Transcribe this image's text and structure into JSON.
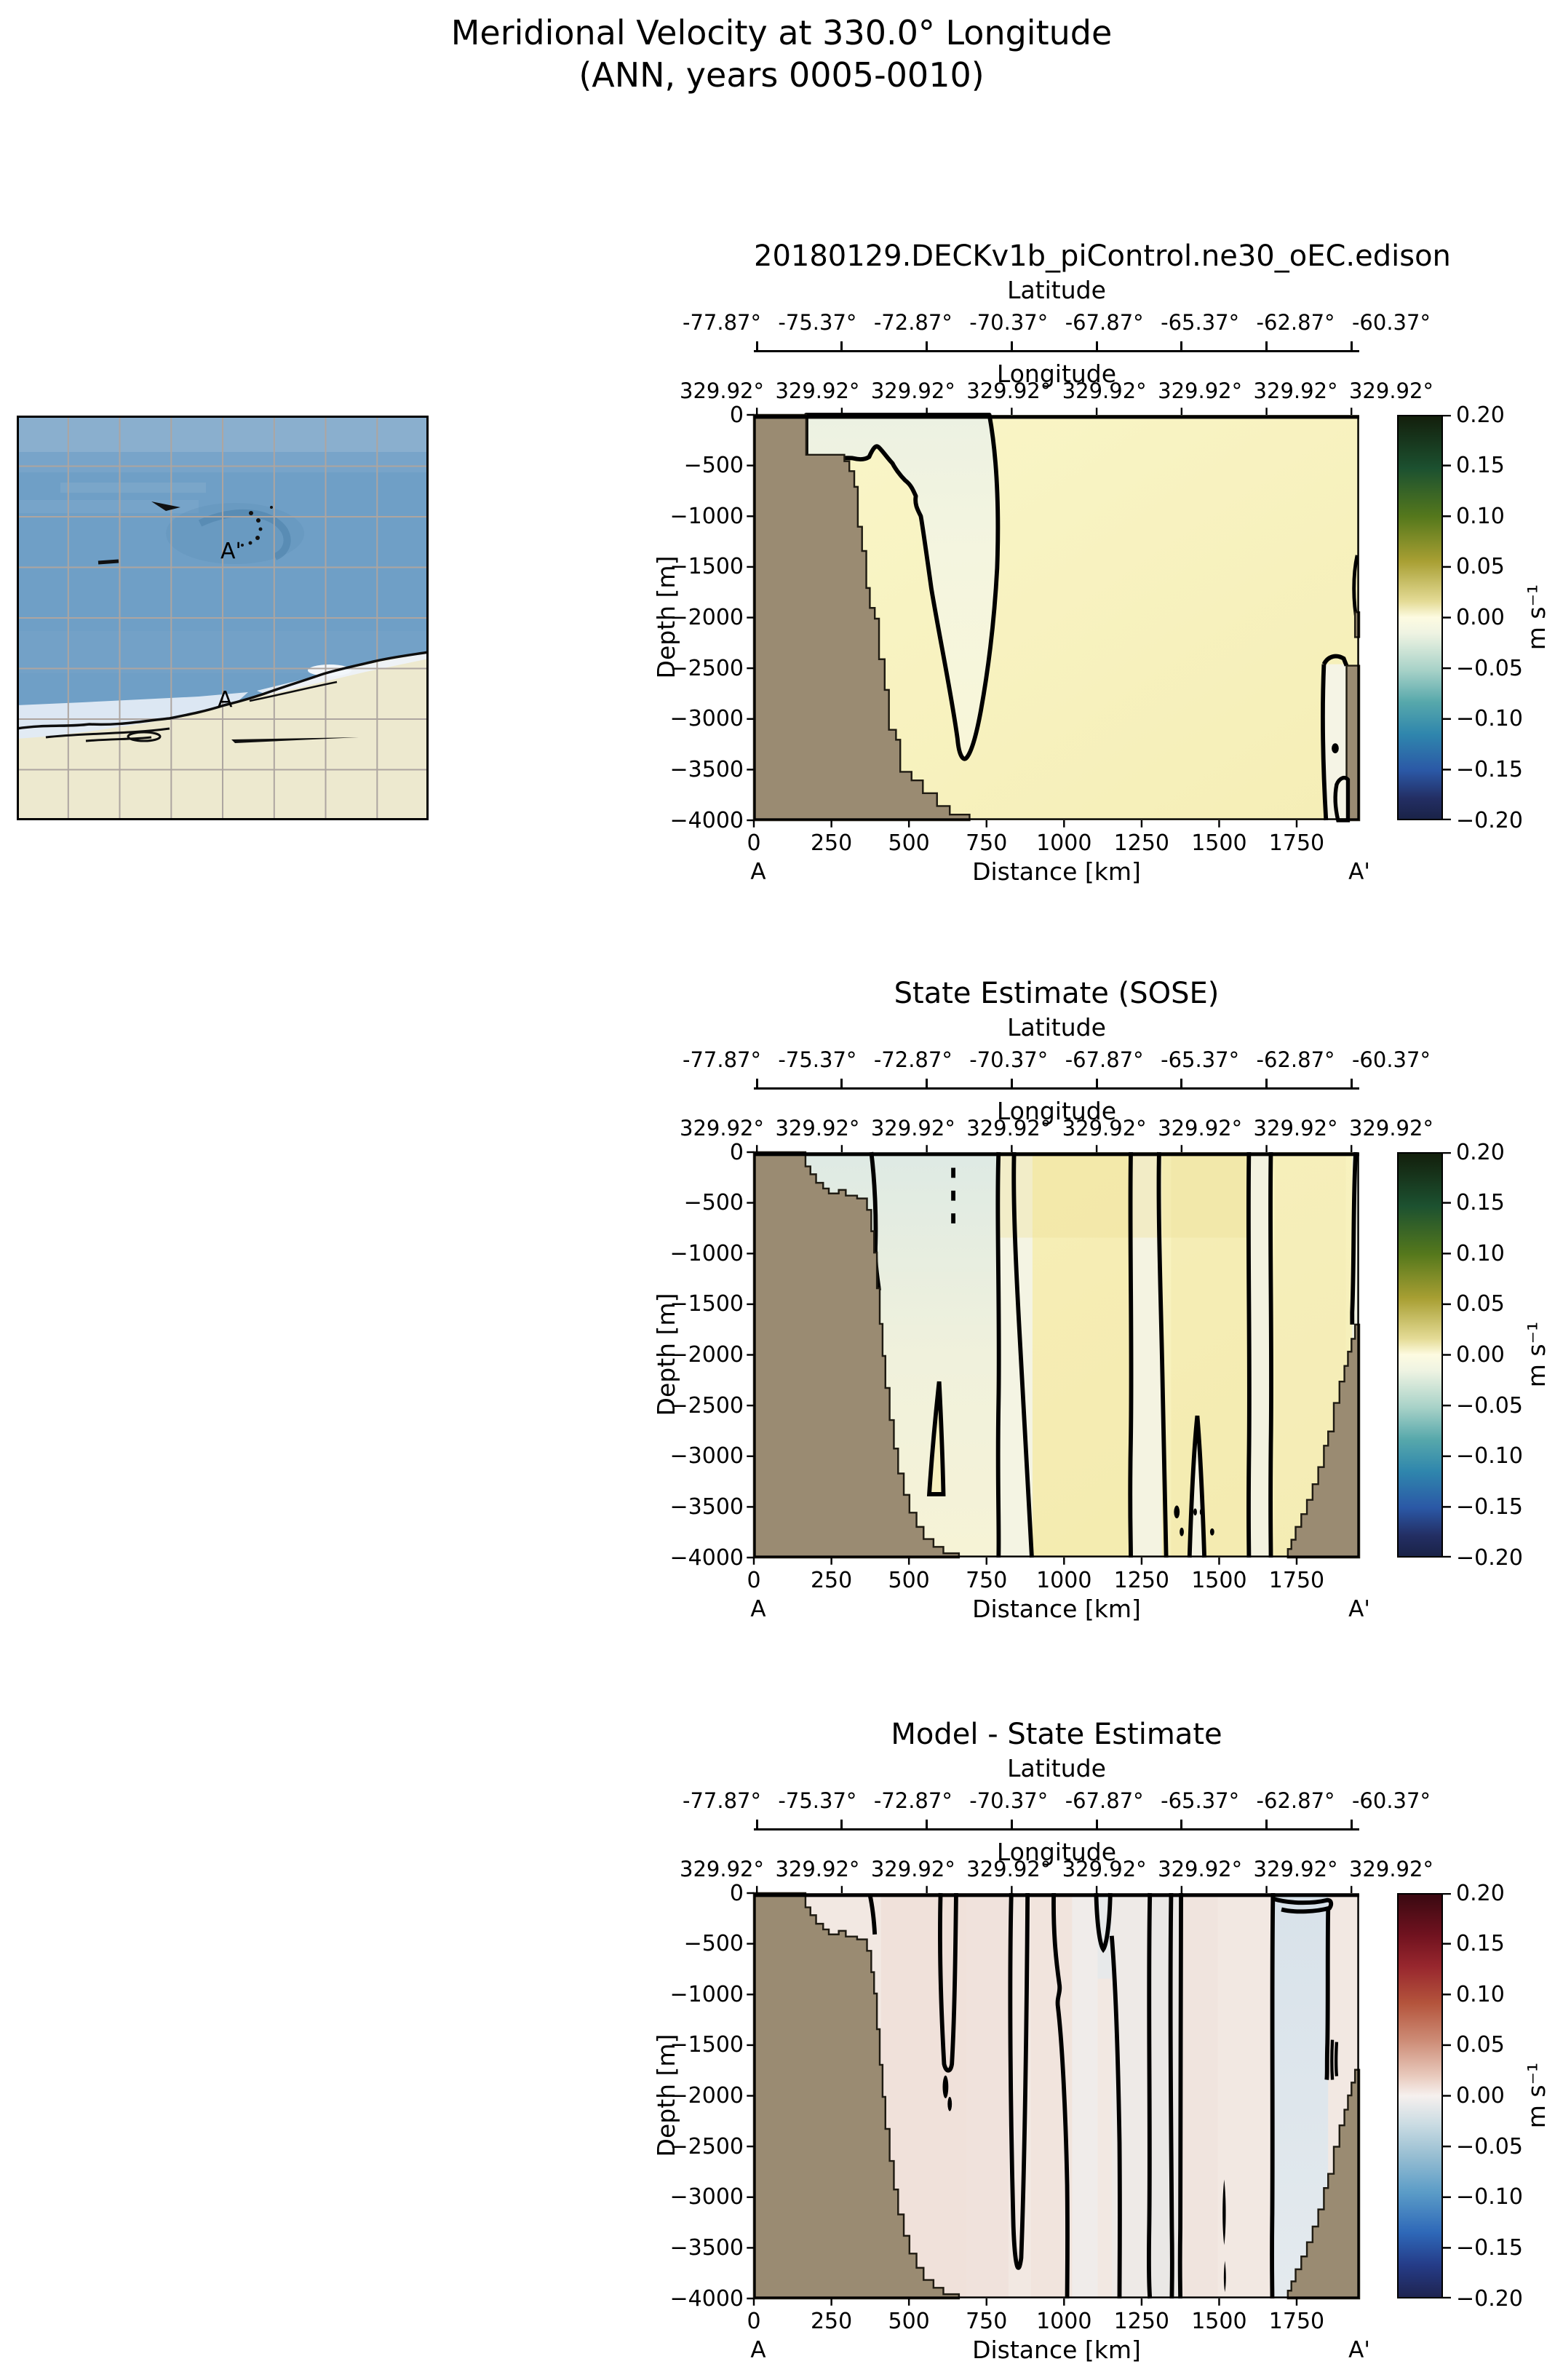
{
  "figure": {
    "title_line1": "Meridional Velocity at 330.0° Longitude",
    "title_line2": "(ANN, years 0005-0010)"
  },
  "panels": [
    {
      "title": "20180129.DECKv1b_piControl.ne30_oEC.edison"
    },
    {
      "title": "State Estimate (SOSE)"
    },
    {
      "title": "Model - State Estimate"
    }
  ],
  "axes": {
    "latitude_label": "Latitude",
    "latitude_ticks": [
      "-77.87°",
      "-75.37°",
      "-72.87°",
      "-70.37°",
      "-67.87°",
      "-65.37°",
      "-62.87°",
      "-60.37°"
    ],
    "longitude_label": "Longitude",
    "longitude_ticks": [
      "329.92°",
      "329.92°",
      "329.92°",
      "329.92°",
      "329.92°",
      "329.92°",
      "329.92°",
      "329.92°"
    ],
    "depth_label": "Depth [m]",
    "depth_ticks": [
      "0",
      "−500",
      "−1000",
      "−1500",
      "−2000",
      "−2500",
      "−3000",
      "−3500",
      "−4000"
    ],
    "distance_label": "Distance [km]",
    "distance_ticks": [
      "0",
      "250",
      "500",
      "750",
      "1000",
      "1250",
      "1500",
      "1750"
    ],
    "section_start": "A",
    "section_end": "A'"
  },
  "colorbar": {
    "unit": "m s⁻¹",
    "ticks": [
      "0.20",
      "0.15",
      "0.10",
      "0.05",
      "0.00",
      "−0.05",
      "−0.10",
      "−0.15",
      "−0.20"
    ]
  },
  "map_inset": {
    "label_start": "A",
    "label_end": "A'",
    "ocean_color": "#6F9FC6",
    "land_color": "#EDE9CF",
    "ice_color": "#E2EBF5"
  },
  "colors": {
    "bathymetry_land": "#9A8B72",
    "positive_field": "#FAF5C7",
    "near_zero_field": "#F1F3E2",
    "diff_field": "#F2E8E2",
    "diff_negative_band": "#D8E2EA"
  },
  "chart_data": [
    {
      "type": "heatmap",
      "subtype": "ocean-depth-section-contour",
      "title": "20180129.DECKv1b_piControl.ne30_oEC.edison",
      "xlabel": "Distance [km]",
      "x_ticks_km": [
        0,
        250,
        500,
        750,
        1000,
        1250,
        1500,
        1750
      ],
      "x_range_km": [
        0,
        1952
      ],
      "ylabel": "Depth [m]",
      "y_ticks_m": [
        0,
        -500,
        -1000,
        -1500,
        -2000,
        -2500,
        -3000,
        -3500,
        -4000
      ],
      "y_range_m": [
        0,
        -4000
      ],
      "latitude_axis": {
        "label": "Latitude",
        "ticks_deg": [
          -77.87,
          -75.37,
          -72.87,
          -70.37,
          -67.87,
          -65.37,
          -62.87,
          -60.37
        ]
      },
      "longitude_axis": {
        "label": "Longitude",
        "ticks_deg": [
          329.92,
          329.92,
          329.92,
          329.92,
          329.92,
          329.92,
          329.92,
          329.92
        ]
      },
      "colorbar": {
        "label": "m s⁻¹",
        "min": -0.2,
        "max": 0.2,
        "tick_step": 0.05,
        "colormap": "diverging dark-green / yellow / cream / teal / dark-blue"
      },
      "section_endpoints": [
        "A",
        "A'"
      ],
      "field_summary": "Weak positive meridional velocity (0 to +0.05 m/s, pale yellow) over most of section; near-zero/slightly negative tongue (pale cream) from the shelf at 200-800 km reaching ~3400 m depth, outlined by a thick zero contour; small near-zero pocket against the ridge at ~1850-1950 km; brown bathymetry on both ends."
    },
    {
      "type": "heatmap",
      "subtype": "ocean-depth-section-contour",
      "title": "State Estimate (SOSE)",
      "xlabel": "Distance [km]",
      "x_ticks_km": [
        0,
        250,
        500,
        750,
        1000,
        1250,
        1500,
        1750
      ],
      "x_range_km": [
        0,
        1952
      ],
      "ylabel": "Depth [m]",
      "y_ticks_m": [
        0,
        -500,
        -1000,
        -1500,
        -2000,
        -2500,
        -3000,
        -3500,
        -4000
      ],
      "y_range_m": [
        0,
        -4000
      ],
      "latitude_axis": {
        "label": "Latitude",
        "ticks_deg": [
          -77.87,
          -75.37,
          -72.87,
          -70.37,
          -67.87,
          -65.37,
          -62.87,
          -60.37
        ]
      },
      "longitude_axis": {
        "label": "Longitude",
        "ticks_deg": [
          329.92,
          329.92,
          329.92,
          329.92,
          329.92,
          329.92,
          329.92,
          329.92
        ]
      },
      "colorbar": {
        "label": "m s⁻¹",
        "min": -0.2,
        "max": 0.2,
        "tick_step": 0.05,
        "colormap": "diverging dark-green / yellow / cream / teal / dark-blue"
      },
      "section_endpoints": [
        "A",
        "A'"
      ],
      "field_summary": "Alternating full-depth vertical bands of weakly positive (pale yellow) and weakly negative (pale teal/white) velocity separated by zero contours near ~800, 900, 1230, 1330, 1620, 1690 km; slightly negative region over the continental slope (400-800 km); bathymetry staircase on both sides."
    },
    {
      "type": "heatmap",
      "subtype": "ocean-depth-section-contour",
      "title": "Model - State Estimate",
      "xlabel": "Distance [km]",
      "x_ticks_km": [
        0,
        250,
        500,
        750,
        1000,
        1250,
        1500,
        1750
      ],
      "x_range_km": [
        0,
        1952
      ],
      "ylabel": "Depth [m]",
      "y_ticks_m": [
        0,
        -500,
        -1000,
        -1500,
        -2000,
        -2500,
        -3000,
        -3500,
        -4000
      ],
      "y_range_m": [
        0,
        -4000
      ],
      "latitude_axis": {
        "label": "Latitude",
        "ticks_deg": [
          -77.87,
          -75.37,
          -72.87,
          -70.37,
          -67.87,
          -65.37,
          -62.87,
          -60.37
        ]
      },
      "longitude_axis": {
        "label": "Longitude",
        "ticks_deg": [
          329.92,
          329.92,
          329.92,
          329.92,
          329.92,
          329.92,
          329.92,
          329.92
        ]
      },
      "colorbar": {
        "label": "m s⁻¹",
        "min": -0.2,
        "max": 0.2,
        "tick_step": 0.05,
        "colormap": "diverging dark-red / pink / white / light-blue / dark-blue (balance)"
      },
      "section_endpoints": [
        "A",
        "A'"
      ],
      "field_summary": "Difference field near zero everywhere: very pale pink (slightly positive) background with narrow pale blue (slightly negative) full-depth bands, strongest blue band at ~1700-1850 km; many near-vertical zero contours; same bathymetry mask."
    }
  ]
}
